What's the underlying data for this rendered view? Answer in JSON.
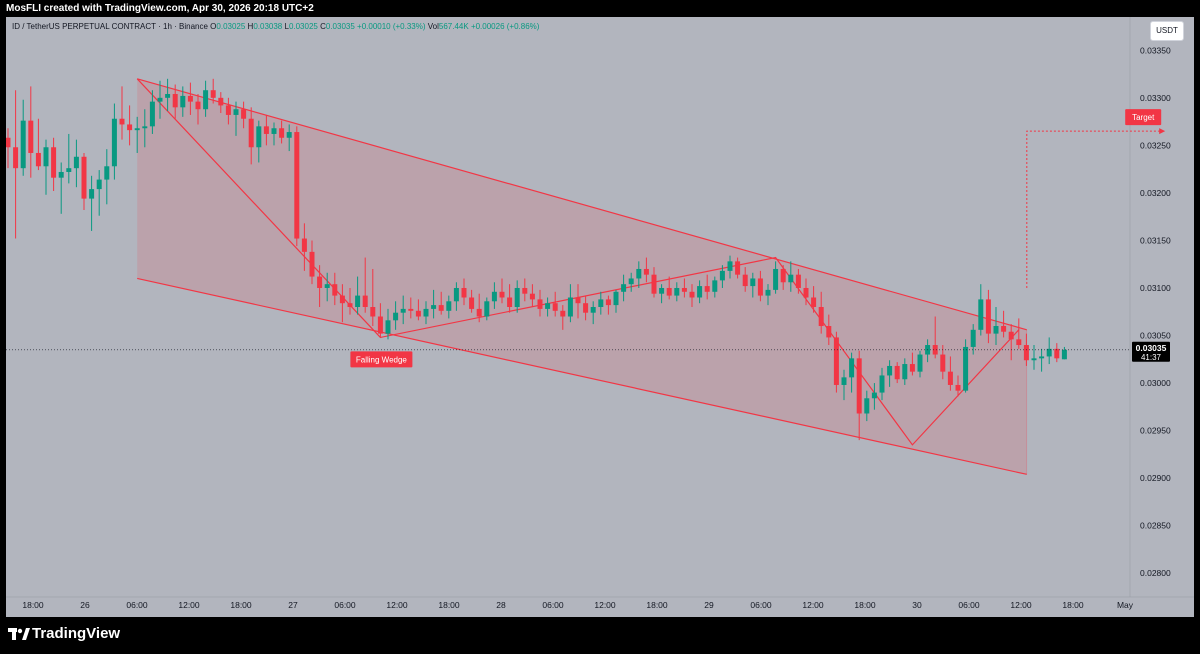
{
  "header": {
    "credit": "MosFLI created with TradingView.com, Apr 30, 2026 20:18 UTC+2"
  },
  "legend": {
    "symbol": "ID / TetherUS PERPETUAL CONTRACT · 1h · Binance",
    "o_label": "O",
    "o_value": "0.03025",
    "h_label": "H",
    "h_value": "0.03038",
    "l_label": "L",
    "l_value": "0.03025",
    "c_label": "C",
    "c_value": "0.03035",
    "change": "+0.00010 (+0.33%)",
    "vol_label": "Vol",
    "vol_value": "567.44K",
    "vol_change": "+0.00026 (+0.86%)"
  },
  "currency_badge": "USDT",
  "footer": {
    "brand": "TradingView"
  },
  "colors": {
    "background": "#b2b5be",
    "up": "#089981",
    "down": "#f23645",
    "pattern": "#f23645",
    "pattern_fill": "rgba(242,54,69,0.15)",
    "price_badge_bg": "#000000"
  },
  "chart_data": {
    "type": "candlestick",
    "title": "ID / TetherUS PERPETUAL CONTRACT · 1h · Binance",
    "y_axis": {
      "ticks": [
        0.0335,
        0.033,
        0.0325,
        0.032,
        0.0315,
        0.031,
        0.0305,
        0.03,
        0.0295,
        0.029,
        0.0285,
        0.028
      ],
      "tick_labels": [
        "0.03350",
        "0.03300",
        "0.03250",
        "0.03200",
        "0.03150",
        "0.03100",
        "0.03050",
        "0.03000",
        "0.02950",
        "0.02900",
        "0.02850",
        "0.02800"
      ],
      "ylim": [
        0.02775,
        0.03385
      ]
    },
    "x_axis": {
      "tick_labels": [
        "18:00",
        "26",
        "06:00",
        "12:00",
        "18:00",
        "27",
        "06:00",
        "12:00",
        "18:00",
        "28",
        "06:00",
        "12:00",
        "18:00",
        "29",
        "06:00",
        "12:00",
        "18:00",
        "30",
        "06:00",
        "12:00",
        "18:00",
        "May"
      ],
      "tick_hours": [
        0,
        6,
        12,
        18,
        24,
        30,
        36,
        42,
        48,
        54,
        60,
        66,
        72,
        78,
        84,
        90,
        96,
        102,
        108,
        114,
        120,
        126
      ]
    },
    "current_price": {
      "value": 0.03035,
      "label": "0.03035",
      "countdown": "41:37"
    },
    "candles": [
      [
        0.03258,
        0.03268,
        0.03226,
        0.03248
      ],
      [
        0.03248,
        0.03308,
        0.03152,
        0.03226
      ],
      [
        0.03226,
        0.03298,
        0.03218,
        0.03276
      ],
      [
        0.03276,
        0.03312,
        0.03216,
        0.03242
      ],
      [
        0.03242,
        0.03278,
        0.03224,
        0.03228
      ],
      [
        0.03228,
        0.03256,
        0.03198,
        0.03248
      ],
      [
        0.03248,
        0.03258,
        0.03202,
        0.03216
      ],
      [
        0.03216,
        0.03232,
        0.03178,
        0.03222
      ],
      [
        0.03222,
        0.03262,
        0.0321,
        0.03226
      ],
      [
        0.03226,
        0.03256,
        0.03206,
        0.03238
      ],
      [
        0.03238,
        0.03242,
        0.03182,
        0.03194
      ],
      [
        0.03194,
        0.03218,
        0.0316,
        0.03204
      ],
      [
        0.03204,
        0.03224,
        0.03176,
        0.03214
      ],
      [
        0.03214,
        0.03246,
        0.03188,
        0.03228
      ],
      [
        0.03228,
        0.03294,
        0.03214,
        0.03278
      ],
      [
        0.03278,
        0.03312,
        0.03256,
        0.03272
      ],
      [
        0.03272,
        0.03292,
        0.0325,
        0.03266
      ],
      [
        0.03266,
        0.0328,
        0.03242,
        0.03268
      ],
      [
        0.03268,
        0.03288,
        0.03248,
        0.0327
      ],
      [
        0.0327,
        0.03308,
        0.03262,
        0.03296
      ],
      [
        0.03296,
        0.03318,
        0.03278,
        0.033
      ],
      [
        0.033,
        0.0332,
        0.03286,
        0.03304
      ],
      [
        0.03304,
        0.03314,
        0.03278,
        0.0329
      ],
      [
        0.0329,
        0.03312,
        0.0328,
        0.03302
      ],
      [
        0.03302,
        0.03316,
        0.03282,
        0.03296
      ],
      [
        0.03296,
        0.03304,
        0.03272,
        0.03288
      ],
      [
        0.03288,
        0.03318,
        0.0328,
        0.03308
      ],
      [
        0.03308,
        0.0332,
        0.03294,
        0.033
      ],
      [
        0.033,
        0.03306,
        0.03284,
        0.03292
      ],
      [
        0.03292,
        0.033,
        0.03272,
        0.03282
      ],
      [
        0.03282,
        0.03296,
        0.0326,
        0.03288
      ],
      [
        0.03288,
        0.03296,
        0.03268,
        0.03278
      ],
      [
        0.03278,
        0.0329,
        0.0323,
        0.03248
      ],
      [
        0.03248,
        0.03276,
        0.03232,
        0.0327
      ],
      [
        0.0327,
        0.03282,
        0.0325,
        0.03262
      ],
      [
        0.03262,
        0.03274,
        0.0325,
        0.03268
      ],
      [
        0.03268,
        0.03276,
        0.03252,
        0.03258
      ],
      [
        0.03258,
        0.03272,
        0.03244,
        0.03264
      ],
      [
        0.03264,
        0.0327,
        0.03144,
        0.03152
      ],
      [
        0.03152,
        0.03168,
        0.03118,
        0.03138
      ],
      [
        0.03138,
        0.0315,
        0.03104,
        0.03112
      ],
      [
        0.03112,
        0.03124,
        0.0308,
        0.031
      ],
      [
        0.031,
        0.03116,
        0.03086,
        0.03104
      ],
      [
        0.03104,
        0.03116,
        0.03082,
        0.03092
      ],
      [
        0.03092,
        0.03104,
        0.03064,
        0.03084
      ],
      [
        0.03084,
        0.031,
        0.03072,
        0.0308
      ],
      [
        0.0308,
        0.03112,
        0.03072,
        0.03092
      ],
      [
        0.03092,
        0.03132,
        0.03074,
        0.0308
      ],
      [
        0.0308,
        0.0312,
        0.0306,
        0.0307
      ],
      [
        0.0307,
        0.03084,
        0.03048,
        0.03052
      ],
      [
        0.03052,
        0.03078,
        0.03046,
        0.03066
      ],
      [
        0.03066,
        0.03086,
        0.03056,
        0.03074
      ],
      [
        0.03074,
        0.03092,
        0.03062,
        0.03078
      ],
      [
        0.03078,
        0.0309,
        0.03068,
        0.03076
      ],
      [
        0.03076,
        0.03088,
        0.03066,
        0.0307
      ],
      [
        0.0307,
        0.03086,
        0.03062,
        0.03078
      ],
      [
        0.03078,
        0.03098,
        0.03068,
        0.03082
      ],
      [
        0.03082,
        0.03096,
        0.03072,
        0.03076
      ],
      [
        0.03076,
        0.03092,
        0.03068,
        0.03086
      ],
      [
        0.03086,
        0.03106,
        0.03076,
        0.031
      ],
      [
        0.031,
        0.0311,
        0.03082,
        0.0309
      ],
      [
        0.0309,
        0.03098,
        0.03074,
        0.03078
      ],
      [
        0.03078,
        0.03094,
        0.03064,
        0.0307
      ],
      [
        0.0307,
        0.0309,
        0.03066,
        0.03086
      ],
      [
        0.03086,
        0.03106,
        0.03078,
        0.03096
      ],
      [
        0.03096,
        0.0311,
        0.03084,
        0.0309
      ],
      [
        0.0309,
        0.03104,
        0.03074,
        0.0308
      ],
      [
        0.0308,
        0.03108,
        0.03074,
        0.031
      ],
      [
        0.031,
        0.0311,
        0.03086,
        0.03094
      ],
      [
        0.03094,
        0.03104,
        0.0308,
        0.03088
      ],
      [
        0.03088,
        0.03098,
        0.0307,
        0.03078
      ],
      [
        0.03078,
        0.0309,
        0.0307,
        0.03084
      ],
      [
        0.03084,
        0.03096,
        0.0307,
        0.03076
      ],
      [
        0.03076,
        0.03082,
        0.03056,
        0.0307
      ],
      [
        0.0307,
        0.03104,
        0.03064,
        0.0309
      ],
      [
        0.0309,
        0.03104,
        0.03068,
        0.03084
      ],
      [
        0.03084,
        0.03092,
        0.03066,
        0.03074
      ],
      [
        0.03074,
        0.03086,
        0.03062,
        0.0308
      ],
      [
        0.0308,
        0.03096,
        0.03072,
        0.03088
      ],
      [
        0.03088,
        0.03092,
        0.03072,
        0.03082
      ],
      [
        0.03082,
        0.03098,
        0.03074,
        0.03096
      ],
      [
        0.03096,
        0.03114,
        0.03086,
        0.03104
      ],
      [
        0.03104,
        0.03116,
        0.03096,
        0.0311
      ],
      [
        0.0311,
        0.03128,
        0.031,
        0.0312
      ],
      [
        0.0312,
        0.03132,
        0.03106,
        0.03114
      ],
      [
        0.03114,
        0.03122,
        0.0309,
        0.03094
      ],
      [
        0.03094,
        0.03104,
        0.03084,
        0.031
      ],
      [
        0.031,
        0.03112,
        0.03088,
        0.03092
      ],
      [
        0.03092,
        0.03106,
        0.03086,
        0.031
      ],
      [
        0.031,
        0.0311,
        0.0309,
        0.03096
      ],
      [
        0.03096,
        0.03104,
        0.0308,
        0.0309
      ],
      [
        0.0309,
        0.03108,
        0.03084,
        0.03102
      ],
      [
        0.03102,
        0.03114,
        0.03088,
        0.03096
      ],
      [
        0.03096,
        0.03112,
        0.0309,
        0.03108
      ],
      [
        0.03108,
        0.03124,
        0.031,
        0.03118
      ],
      [
        0.03118,
        0.03134,
        0.0311,
        0.03128
      ],
      [
        0.03128,
        0.03132,
        0.0311,
        0.03114
      ],
      [
        0.03114,
        0.03122,
        0.03096,
        0.03102
      ],
      [
        0.03102,
        0.03116,
        0.0309,
        0.0311
      ],
      [
        0.0311,
        0.03118,
        0.03086,
        0.03092
      ],
      [
        0.03092,
        0.03104,
        0.03082,
        0.03098
      ],
      [
        0.03098,
        0.03128,
        0.03094,
        0.0312
      ],
      [
        0.0312,
        0.03124,
        0.03098,
        0.03106
      ],
      [
        0.03106,
        0.03128,
        0.03096,
        0.03114
      ],
      [
        0.03114,
        0.0312,
        0.03094,
        0.031
      ],
      [
        0.031,
        0.0311,
        0.03082,
        0.0309
      ],
      [
        0.0309,
        0.03102,
        0.03074,
        0.0308
      ],
      [
        0.0308,
        0.03096,
        0.03052,
        0.0306
      ],
      [
        0.0306,
        0.03072,
        0.0304,
        0.03048
      ],
      [
        0.03048,
        0.03054,
        0.0299,
        0.02998
      ],
      [
        0.02998,
        0.03014,
        0.02982,
        0.03006
      ],
      [
        0.03006,
        0.03032,
        0.0299,
        0.03026
      ],
      [
        0.03026,
        0.03034,
        0.0294,
        0.02968
      ],
      [
        0.02968,
        0.02992,
        0.0296,
        0.02984
      ],
      [
        0.02984,
        0.03,
        0.02972,
        0.0299
      ],
      [
        0.0299,
        0.03016,
        0.02982,
        0.03008
      ],
      [
        0.03008,
        0.03024,
        0.02996,
        0.03018
      ],
      [
        0.03018,
        0.03022,
        0.03,
        0.03004
      ],
      [
        0.03004,
        0.03026,
        0.02998,
        0.0302
      ],
      [
        0.0302,
        0.03032,
        0.03008,
        0.03012
      ],
      [
        0.03012,
        0.03034,
        0.03006,
        0.0303
      ],
      [
        0.0303,
        0.03046,
        0.03022,
        0.0304
      ],
      [
        0.0304,
        0.0307,
        0.03026,
        0.0303
      ],
      [
        0.0303,
        0.0304,
        0.03004,
        0.03012
      ],
      [
        0.03012,
        0.03028,
        0.02992,
        0.02998
      ],
      [
        0.02998,
        0.03008,
        0.02986,
        0.02992
      ],
      [
        0.02992,
        0.03046,
        0.0299,
        0.03038
      ],
      [
        0.03038,
        0.03062,
        0.0303,
        0.03056
      ],
      [
        0.03056,
        0.03104,
        0.0305,
        0.03088
      ],
      [
        0.03088,
        0.03098,
        0.03042,
        0.03052
      ],
      [
        0.03052,
        0.0308,
        0.0304,
        0.0306
      ],
      [
        0.0306,
        0.03076,
        0.03048,
        0.03054
      ],
      [
        0.03054,
        0.03062,
        0.03024,
        0.03046
      ],
      [
        0.03046,
        0.03068,
        0.03036,
        0.0304
      ],
      [
        0.0304,
        0.03052,
        0.03018,
        0.03024
      ],
      [
        0.03024,
        0.0304,
        0.03014,
        0.03026
      ],
      [
        0.03026,
        0.03036,
        0.03012,
        0.03028
      ],
      [
        0.03028,
        0.03048,
        0.0302,
        0.03036
      ],
      [
        0.03036,
        0.03042,
        0.03022,
        0.03026
      ],
      [
        0.03025,
        0.03038,
        0.03025,
        0.03035
      ]
    ],
    "pattern": {
      "name": "Falling Wedge",
      "label": "Falling Wedge",
      "upper_line": [
        [
          17,
          0.0332
        ],
        [
          133,
          0.03056
        ]
      ],
      "lower_line": [
        [
          17,
          0.0311
        ],
        [
          133,
          0.02904
        ]
      ],
      "zigzag": [
        [
          17,
          0.0332
        ],
        [
          49,
          0.03048
        ],
        [
          101,
          0.03132
        ],
        [
          119,
          0.02935
        ],
        [
          133,
          0.03056
        ]
      ],
      "target": {
        "label": "Target",
        "value": 0.03265,
        "from_index": 133,
        "from_value": 0.031,
        "to_index": 152
      }
    }
  }
}
